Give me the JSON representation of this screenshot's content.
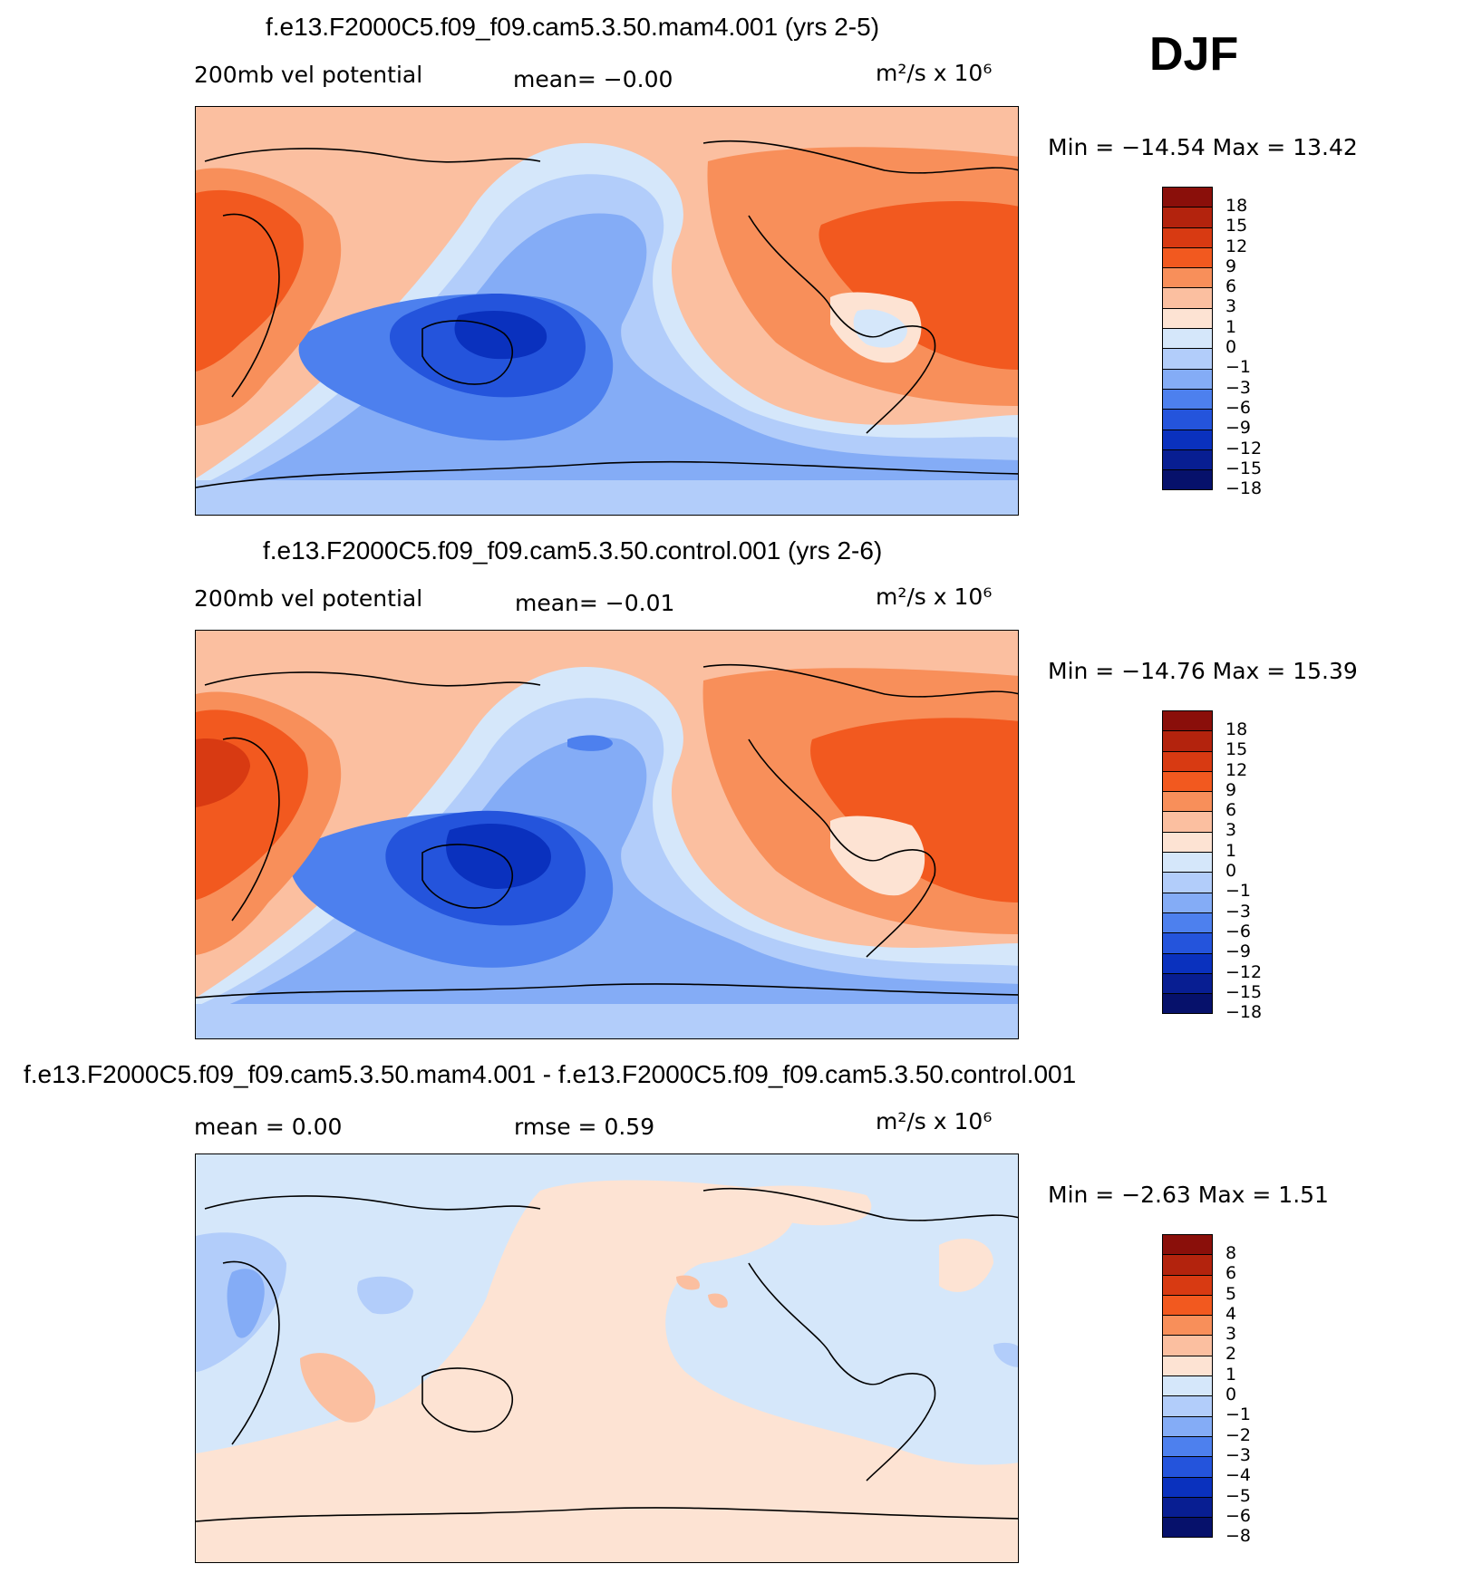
{
  "header": {
    "season": "DJF"
  },
  "panels": [
    {
      "title": "f.e13.F2000C5.f09_f09.cam5.3.50.mam4.001 (yrs 2-5)",
      "field_label": "200mb vel potential",
      "stat_text": "mean=   −0.00",
      "units_text": "m²/s x 10⁶",
      "minmax_text": "Min = −14.54 Max =   13.42",
      "colorbar": {
        "colors": [
          "#8a0f0a",
          "#b3230d",
          "#d83a12",
          "#f2591f",
          "#f88f5a",
          "#fbbfa0",
          "#fde3d3",
          "#d5e7fa",
          "#b2cdfa",
          "#84acf6",
          "#4d80ee",
          "#2454dc",
          "#0a31be",
          "#081e92",
          "#06116b"
        ],
        "labels": [
          "18",
          "15",
          "12",
          "9",
          "6",
          "3",
          "1",
          "0",
          "−1",
          "−3",
          "−6",
          "−9",
          "−12",
          "−15",
          "−18"
        ]
      }
    },
    {
      "title": "f.e13.F2000C5.f09_f09.cam5.3.50.control.001 (yrs 2-6)",
      "field_label": "200mb vel potential",
      "stat_text": "mean=   −0.01",
      "units_text": "m²/s x 10⁶",
      "minmax_text": "Min = −14.76 Max =   15.39",
      "colorbar": {
        "colors": [
          "#8a0f0a",
          "#b3230d",
          "#d83a12",
          "#f2591f",
          "#f88f5a",
          "#fbbfa0",
          "#fde3d3",
          "#d5e7fa",
          "#b2cdfa",
          "#84acf6",
          "#4d80ee",
          "#2454dc",
          "#0a31be",
          "#081e92",
          "#06116b"
        ],
        "labels": [
          "18",
          "15",
          "12",
          "9",
          "6",
          "3",
          "1",
          "0",
          "−1",
          "−3",
          "−6",
          "−9",
          "−12",
          "−15",
          "−18"
        ]
      }
    },
    {
      "title": "f.e13.F2000C5.f09_f09.cam5.3.50.mam4.001 - f.e13.F2000C5.f09_f09.cam5.3.50.control.001",
      "field_label": "mean =     0.00",
      "stat_text": "rmse =     0.59",
      "units_text": "m²/s x 10⁶",
      "minmax_text": "Min =   −2.63 Max =    1.51",
      "colorbar": {
        "colors": [
          "#8a0f0a",
          "#b3230d",
          "#d83a12",
          "#f2591f",
          "#f88f5a",
          "#fbbfa0",
          "#fde3d3",
          "#d5e7fa",
          "#b2cdfa",
          "#84acf6",
          "#4d80ee",
          "#2454dc",
          "#0a31be",
          "#081e92",
          "#06116b"
        ],
        "labels": [
          "8",
          "6",
          "5",
          "4",
          "3",
          "2",
          "1",
          "0",
          "−1",
          "−2",
          "−3",
          "−4",
          "−5",
          "−6",
          "−8"
        ]
      }
    }
  ]
}
